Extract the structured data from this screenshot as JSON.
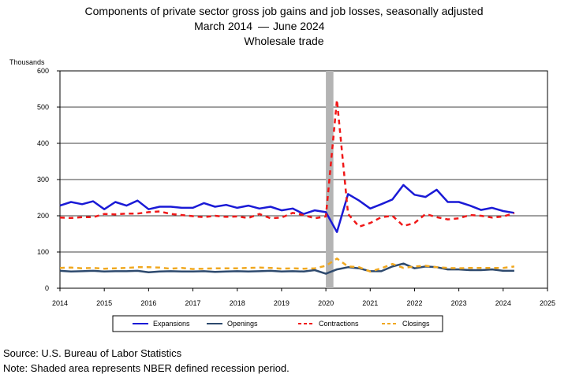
{
  "chart_data": {
    "type": "line",
    "title": "Components of private sector gross job gains and job losses, seasonally adjusted",
    "subtitle_start": "March 2014",
    "subtitle_sep": "—",
    "subtitle_end": "June 2024",
    "subtitle2": "Wholesale trade",
    "ylabel": "Thousands",
    "xlabel": "",
    "xlim": [
      2014,
      2025
    ],
    "ylim": [
      0,
      600
    ],
    "x_ticks": [
      "2014",
      "2015",
      "2016",
      "2017",
      "2018",
      "2019",
      "2020",
      "2021",
      "2022",
      "2023",
      "2024",
      "2025"
    ],
    "y_ticks": [
      "0",
      "100",
      "200",
      "300",
      "400",
      "500",
      "600"
    ],
    "grid": true,
    "legend_position": "bottom",
    "recession": {
      "start": 2020.0,
      "end": 2020.17
    },
    "x": [
      2014.0,
      2014.25,
      2014.5,
      2014.75,
      2015.0,
      2015.25,
      2015.5,
      2015.75,
      2016.0,
      2016.25,
      2016.5,
      2016.75,
      2017.0,
      2017.25,
      2017.5,
      2017.75,
      2018.0,
      2018.25,
      2018.5,
      2018.75,
      2019.0,
      2019.25,
      2019.5,
      2019.75,
      2020.0,
      2020.25,
      2020.5,
      2020.75,
      2021.0,
      2021.25,
      2021.5,
      2021.75,
      2022.0,
      2022.25,
      2022.5,
      2022.75,
      2023.0,
      2023.25,
      2023.5,
      2023.75,
      2024.0,
      2024.25
    ],
    "series": [
      {
        "name": "Expansions",
        "color": "#1a1ad6",
        "dash": "solid",
        "width": 2.5,
        "values": [
          228,
          238,
          232,
          240,
          218,
          238,
          228,
          242,
          218,
          225,
          225,
          222,
          222,
          235,
          225,
          230,
          222,
          228,
          220,
          225,
          215,
          220,
          205,
          215,
          210,
          155,
          260,
          242,
          220,
          232,
          245,
          285,
          258,
          252,
          272,
          238,
          238,
          228,
          216,
          222,
          213,
          208
        ]
      },
      {
        "name": "Openings",
        "color": "#2e4a6e",
        "dash": "solid",
        "width": 2.5,
        "values": [
          48,
          46,
          47,
          48,
          46,
          47,
          47,
          48,
          44,
          46,
          47,
          46,
          46,
          47,
          45,
          46,
          47,
          46,
          47,
          48,
          46,
          47,
          46,
          50,
          40,
          52,
          58,
          55,
          47,
          47,
          60,
          68,
          55,
          60,
          58,
          52,
          52,
          50,
          50,
          52,
          48,
          48
        ]
      },
      {
        "name": "Contractions",
        "color": "#f01818",
        "dash": "6,5",
        "width": 2.5,
        "values": [
          195,
          194,
          196,
          196,
          205,
          204,
          206,
          206,
          210,
          212,
          205,
          202,
          199,
          196,
          200,
          197,
          198,
          194,
          205,
          193,
          195,
          208,
          202,
          193,
          198,
          520,
          205,
          170,
          180,
          196,
          200,
          172,
          180,
          205,
          196,
          190,
          193,
          202,
          200,
          195,
          198,
          207
        ]
      },
      {
        "name": "Closings",
        "color": "#f0a820",
        "dash": "6,5",
        "width": 2.5,
        "values": [
          56,
          57,
          55,
          56,
          54,
          55,
          56,
          58,
          58,
          57,
          54,
          56,
          53,
          54,
          55,
          55,
          55,
          56,
          57,
          56,
          54,
          55,
          54,
          55,
          62,
          82,
          60,
          58,
          46,
          55,
          67,
          56,
          60,
          62,
          58,
          56,
          55,
          56,
          56,
          56,
          56,
          60
        ]
      }
    ]
  },
  "footnotes": {
    "source": "Source: U.S. Bureau of Labor Statistics",
    "note": "Note: Shaded area represents NBER defined recession period."
  }
}
